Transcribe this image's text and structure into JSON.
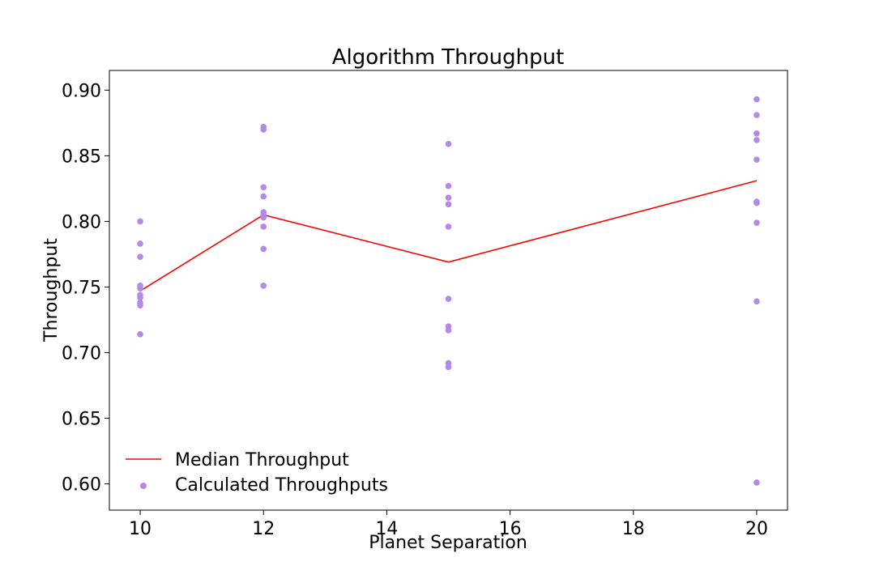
{
  "chart_data": {
    "type": "scatter",
    "title": "Algorithm Throughput",
    "xlabel": "Planet Separation",
    "ylabel": "Throughput",
    "xlim": [
      9.5,
      20.5
    ],
    "ylim": [
      0.58,
      0.915
    ],
    "xticks": [
      10,
      12,
      14,
      16,
      18,
      20
    ],
    "yticks": [
      0.6,
      0.65,
      0.7,
      0.75,
      0.8,
      0.85,
      0.9
    ],
    "grid": false,
    "legend_position": "lower-left",
    "colors": {
      "median": "#ff0000",
      "points": "#b48ae6"
    },
    "series": [
      {
        "name": "Median Throughput",
        "kind": "line",
        "x": [
          10,
          12,
          15,
          20
        ],
        "y": [
          0.747,
          0.805,
          0.769,
          0.831
        ]
      },
      {
        "name": "Calculated Throughputs",
        "kind": "scatter",
        "points": [
          [
            10,
            0.8
          ],
          [
            10,
            0.783
          ],
          [
            10,
            0.773
          ],
          [
            10,
            0.751
          ],
          [
            10,
            0.749
          ],
          [
            10,
            0.744
          ],
          [
            10,
            0.742
          ],
          [
            10,
            0.738
          ],
          [
            10,
            0.736
          ],
          [
            10,
            0.714
          ],
          [
            12,
            0.872
          ],
          [
            12,
            0.87
          ],
          [
            12,
            0.826
          ],
          [
            12,
            0.819
          ],
          [
            12,
            0.807
          ],
          [
            12,
            0.805
          ],
          [
            12,
            0.803
          ],
          [
            12,
            0.796
          ],
          [
            12,
            0.779
          ],
          [
            12,
            0.751
          ],
          [
            15,
            0.859
          ],
          [
            15,
            0.827
          ],
          [
            15,
            0.818
          ],
          [
            15,
            0.813
          ],
          [
            15,
            0.796
          ],
          [
            15,
            0.741
          ],
          [
            15,
            0.72
          ],
          [
            15,
            0.717
          ],
          [
            15,
            0.692
          ],
          [
            15,
            0.689
          ],
          [
            20,
            0.893
          ],
          [
            20,
            0.881
          ],
          [
            20,
            0.867
          ],
          [
            20,
            0.862
          ],
          [
            20,
            0.847
          ],
          [
            20,
            0.815
          ],
          [
            20,
            0.814
          ],
          [
            20,
            0.799
          ],
          [
            20,
            0.739
          ],
          [
            20,
            0.601
          ]
        ]
      }
    ]
  }
}
